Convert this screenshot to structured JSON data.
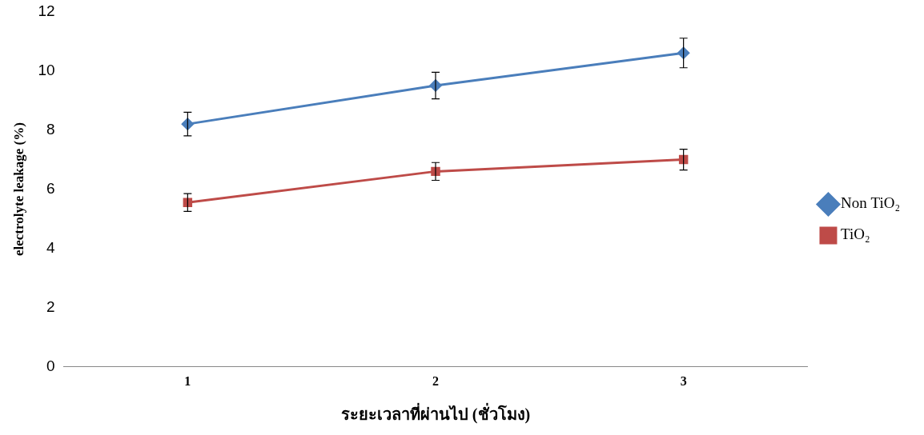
{
  "chart_data": {
    "type": "line",
    "x_label": "ระยะเวลาที่ผ่านไป (ชั่วโมง)",
    "y_label": "electrolyte leakage (%)",
    "categories": [
      "1",
      "2",
      "3"
    ],
    "series": [
      {
        "name": "Non TiO₂",
        "color": "#4a7ebb",
        "marker": "diamond",
        "line_style": "solid",
        "values": [
          8.2,
          9.5,
          10.6
        ],
        "errors": [
          0.4,
          0.45,
          0.5
        ]
      },
      {
        "name": "TiO₂",
        "color": "#be4b48",
        "marker": "square",
        "line_style": "solid",
        "values": [
          5.55,
          6.6,
          7.0
        ],
        "errors": [
          0.3,
          0.3,
          0.35
        ]
      }
    ],
    "ylim": [
      0,
      12
    ],
    "yticks": [
      0,
      2,
      4,
      6,
      8,
      10,
      12
    ],
    "grid": false,
    "legend": "right"
  }
}
